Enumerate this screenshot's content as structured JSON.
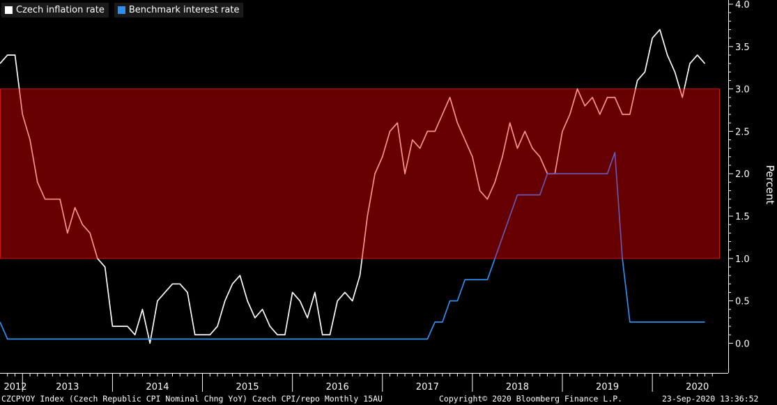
{
  "chart_data": {
    "type": "line",
    "title": "",
    "xlabel": "",
    "ylabel": "Percent",
    "ylim": [
      -0.35,
      4.0
    ],
    "yticks": [
      0.0,
      0.5,
      1.0,
      1.5,
      2.0,
      2.5,
      3.0,
      3.5,
      4.0
    ],
    "ytick_labels": [
      "0.0",
      "0.5",
      "1.0",
      "1.5",
      "2.0",
      "2.5",
      "3.0",
      "3.5",
      "4.0"
    ],
    "x_start": "2012-10",
    "x_end": "2020-10",
    "year_labels": [
      "2012",
      "2013",
      "2014",
      "2015",
      "2016",
      "2017",
      "2018",
      "2019",
      "2020"
    ],
    "target_band": {
      "low": 1.0,
      "high": 3.0,
      "color": "#660000",
      "border": "#cc1111"
    },
    "legend_position": "top-left",
    "series": [
      {
        "name": "Czech inflation rate",
        "color": "#ffffff",
        "band_color": "#ff9090",
        "x": [
          "2012-10",
          "2012-11",
          "2012-12",
          "2013-01",
          "2013-02",
          "2013-03",
          "2013-04",
          "2013-05",
          "2013-06",
          "2013-07",
          "2013-08",
          "2013-09",
          "2013-10",
          "2013-11",
          "2013-12",
          "2014-01",
          "2014-02",
          "2014-03",
          "2014-04",
          "2014-05",
          "2014-06",
          "2014-07",
          "2014-08",
          "2014-09",
          "2014-10",
          "2014-11",
          "2014-12",
          "2015-01",
          "2015-02",
          "2015-03",
          "2015-04",
          "2015-05",
          "2015-06",
          "2015-07",
          "2015-08",
          "2015-09",
          "2015-10",
          "2015-11",
          "2015-12",
          "2016-01",
          "2016-02",
          "2016-03",
          "2016-04",
          "2016-05",
          "2016-06",
          "2016-07",
          "2016-08",
          "2016-09",
          "2016-10",
          "2016-11",
          "2016-12",
          "2017-01",
          "2017-02",
          "2017-03",
          "2017-04",
          "2017-05",
          "2017-06",
          "2017-07",
          "2017-08",
          "2017-09",
          "2017-10",
          "2017-11",
          "2017-12",
          "2018-01",
          "2018-02",
          "2018-03",
          "2018-04",
          "2018-05",
          "2018-06",
          "2018-07",
          "2018-08",
          "2018-09",
          "2018-10",
          "2018-11",
          "2018-12",
          "2019-01",
          "2019-02",
          "2019-03",
          "2019-04",
          "2019-05",
          "2019-06",
          "2019-07",
          "2019-08",
          "2019-09",
          "2019-10",
          "2019-11",
          "2019-12",
          "2020-01",
          "2020-02",
          "2020-03",
          "2020-04",
          "2020-05",
          "2020-06",
          "2020-07",
          "2020-08"
        ],
        "values": [
          3.3,
          3.4,
          3.4,
          2.7,
          2.4,
          1.9,
          1.7,
          1.7,
          1.7,
          1.3,
          1.6,
          1.4,
          1.3,
          1.0,
          0.9,
          0.2,
          0.2,
          0.2,
          0.1,
          0.4,
          0.0,
          0.5,
          0.6,
          0.7,
          0.7,
          0.6,
          0.1,
          0.1,
          0.1,
          0.2,
          0.5,
          0.7,
          0.8,
          0.5,
          0.3,
          0.4,
          0.2,
          0.1,
          0.1,
          0.6,
          0.5,
          0.3,
          0.6,
          0.1,
          0.1,
          0.5,
          0.6,
          0.5,
          0.8,
          1.5,
          2.0,
          2.2,
          2.5,
          2.6,
          2.0,
          2.4,
          2.3,
          2.5,
          2.5,
          2.7,
          2.9,
          2.6,
          2.4,
          2.2,
          1.8,
          1.7,
          1.9,
          2.2,
          2.6,
          2.3,
          2.5,
          2.3,
          2.2,
          2.0,
          2.0,
          2.5,
          2.7,
          3.0,
          2.8,
          2.9,
          2.7,
          2.9,
          2.9,
          2.7,
          2.7,
          3.1,
          3.2,
          3.6,
          3.7,
          3.4,
          3.2,
          2.9,
          3.3,
          3.4,
          3.3
        ]
      },
      {
        "name": "Benchmark interest rate",
        "color": "#2f8ff0",
        "band_color": "#6a56b0",
        "x": [
          "2012-10",
          "2012-11",
          "2012-12",
          "2017-07",
          "2017-08",
          "2017-09",
          "2017-10",
          "2017-11",
          "2017-12",
          "2018-01",
          "2018-02",
          "2018-03",
          "2018-04",
          "2018-05",
          "2018-06",
          "2018-07",
          "2018-08",
          "2018-09",
          "2018-10",
          "2018-11",
          "2018-12",
          "2019-01",
          "2019-02",
          "2019-03",
          "2019-04",
          "2019-05",
          "2019-06",
          "2019-07",
          "2019-08",
          "2019-09",
          "2019-10",
          "2019-11",
          "2019-12",
          "2020-01",
          "2020-02",
          "2020-03",
          "2020-04",
          "2020-05",
          "2020-06",
          "2020-07",
          "2020-08"
        ],
        "values": [
          0.25,
          0.05,
          0.05,
          0.05,
          0.25,
          0.25,
          0.5,
          0.5,
          0.75,
          0.75,
          0.75,
          0.75,
          1.0,
          1.25,
          1.5,
          1.75,
          1.75,
          1.75,
          1.75,
          2.0,
          2.0,
          2.0,
          2.0,
          2.0,
          2.0,
          2.0,
          2.0,
          2.0,
          2.25,
          1.0,
          0.25,
          0.25,
          0.25,
          0.25,
          0.25,
          0.25,
          0.25,
          0.25,
          0.25,
          0.25,
          0.25
        ]
      }
    ]
  },
  "footer": {
    "left": "CZCPYOY Index (Czech Republic CPI Nominal Chng YoY) Czech CPI/repo  Monthly 15AU",
    "center": "Copyright© 2020 Bloomberg Finance L.P.",
    "right": "23-Sep-2020 13:36:52"
  }
}
